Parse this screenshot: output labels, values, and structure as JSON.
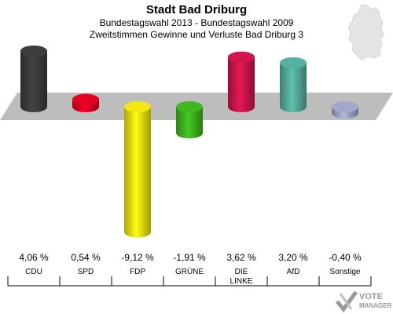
{
  "header": {
    "title": "Stadt Bad Driburg",
    "subtitle": "Bundestagswahl 2013 - Bundestagswahl 2009",
    "caption": "Zweitstimmen Gewinne und Verluste Bad Driburg 3"
  },
  "logo": {
    "line1": "VOTE",
    "line2": "MANAGER"
  },
  "chart_data": {
    "type": "bar",
    "categories": [
      "CDU",
      "SPD",
      "FDP",
      "GRÜNE",
      "DIE LINKE",
      "AfD",
      "Sonstige"
    ],
    "category_lines": [
      [
        "CDU"
      ],
      [
        "SPD"
      ],
      [
        "FDP"
      ],
      [
        "GRÜNE"
      ],
      [
        "DIE",
        "LINKE"
      ],
      [
        "AfD"
      ],
      [
        "Sonstige"
      ]
    ],
    "values": [
      4.06,
      0.54,
      -9.12,
      -1.91,
      3.62,
      3.2,
      -0.4
    ],
    "value_labels": [
      "4,06 %",
      "0,54 %",
      "-9,12 %",
      "-1,91 %",
      "3,62 %",
      "3,20 %",
      "-0,40 %"
    ],
    "colors": [
      "#3a3a3a",
      "#d8001e",
      "#e8dc10",
      "#3cb01e",
      "#c8144b",
      "#52a898",
      "#9aa0c0"
    ],
    "ylim": [
      -9.5,
      4.5
    ]
  }
}
